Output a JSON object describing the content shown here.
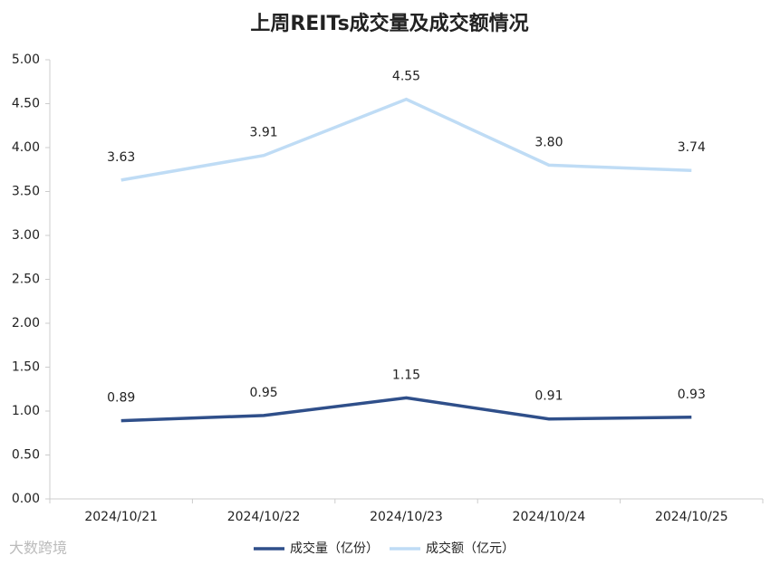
{
  "chart_data": {
    "type": "line",
    "title": "上周REITs成交量及成交额情况",
    "categories": [
      "2024/10/21",
      "2024/10/22",
      "2024/10/23",
      "2024/10/24",
      "2024/10/25"
    ],
    "series": [
      {
        "name": "成交量（亿份）",
        "color": "#2f4f8a",
        "values": [
          0.89,
          0.95,
          1.15,
          0.91,
          0.93
        ],
        "value_labels": [
          "0.89",
          "0.95",
          "1.15",
          "0.91",
          "0.93"
        ]
      },
      {
        "name": "成交额（亿元）",
        "color": "#bfdcf5",
        "values": [
          3.63,
          3.91,
          4.55,
          3.8,
          3.74
        ],
        "value_labels": [
          "3.63",
          "3.91",
          "4.55",
          "3.80",
          "3.74"
        ]
      }
    ],
    "ylim": [
      0,
      5
    ],
    "yticks": [
      {
        "value": 0,
        "label": "0.00"
      },
      {
        "value": 0.5,
        "label": "0.50"
      },
      {
        "value": 1,
        "label": "1.00"
      },
      {
        "value": 1.5,
        "label": "1.50"
      },
      {
        "value": 2,
        "label": "2.00"
      },
      {
        "value": 2.5,
        "label": "2.50"
      },
      {
        "value": 3,
        "label": "3.00"
      },
      {
        "value": 3.5,
        "label": "3.50"
      },
      {
        "value": 4,
        "label": "4.00"
      },
      {
        "value": 4.5,
        "label": "4.50"
      },
      {
        "value": 5,
        "label": "5.00"
      }
    ],
    "grid": false,
    "watermark": "大数跨境"
  }
}
